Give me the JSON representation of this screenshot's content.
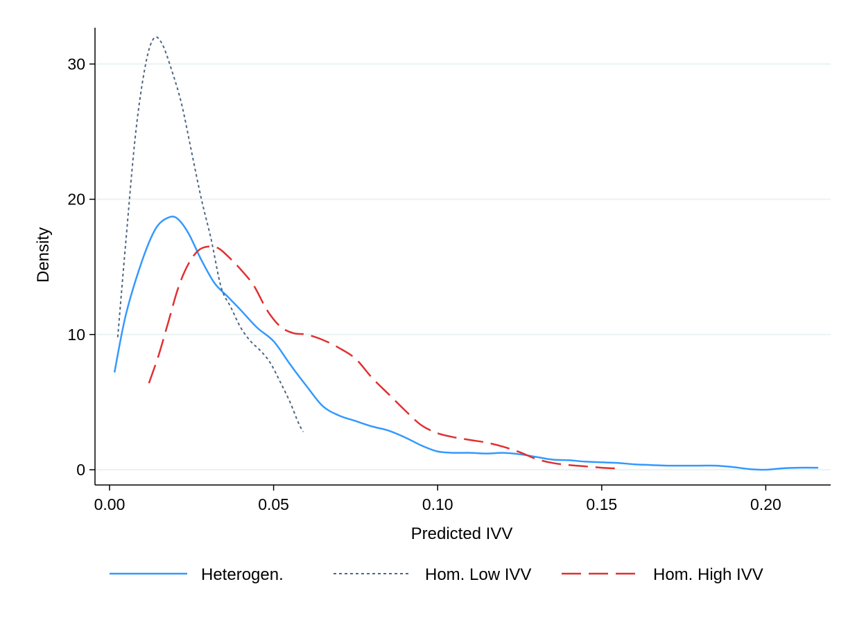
{
  "chart_data": {
    "type": "line",
    "title": "",
    "xlabel": "Predicted IVV",
    "ylabel": "Density",
    "xlim": [
      0.0,
      0.22
    ],
    "ylim": [
      0,
      32
    ],
    "x_ticks": [
      "0.00",
      "0.05",
      "0.10",
      "0.15",
      "0.20"
    ],
    "y_ticks": [
      "0",
      "10",
      "20",
      "30"
    ],
    "grid": "horizontal",
    "legend_position": "bottom",
    "series": [
      {
        "name": "Heterogen.",
        "color": "#3399ff",
        "dash": "solid",
        "points": [
          [
            0.0015,
            7.2
          ],
          [
            0.005,
            11.5
          ],
          [
            0.01,
            15.5
          ],
          [
            0.014,
            17.8
          ],
          [
            0.0175,
            18.6
          ],
          [
            0.0205,
            18.6
          ],
          [
            0.024,
            17.5
          ],
          [
            0.028,
            15.5
          ],
          [
            0.032,
            13.8
          ],
          [
            0.036,
            12.8
          ],
          [
            0.04,
            11.8
          ],
          [
            0.045,
            10.5
          ],
          [
            0.05,
            9.5
          ],
          [
            0.055,
            7.8
          ],
          [
            0.06,
            6.2
          ],
          [
            0.065,
            4.7
          ],
          [
            0.07,
            4.0
          ],
          [
            0.075,
            3.6
          ],
          [
            0.08,
            3.2
          ],
          [
            0.085,
            2.9
          ],
          [
            0.09,
            2.4
          ],
          [
            0.095,
            1.8
          ],
          [
            0.1,
            1.35
          ],
          [
            0.105,
            1.25
          ],
          [
            0.11,
            1.25
          ],
          [
            0.115,
            1.2
          ],
          [
            0.12,
            1.25
          ],
          [
            0.125,
            1.15
          ],
          [
            0.13,
            0.95
          ],
          [
            0.135,
            0.75
          ],
          [
            0.14,
            0.7
          ],
          [
            0.145,
            0.6
          ],
          [
            0.15,
            0.55
          ],
          [
            0.155,
            0.5
          ],
          [
            0.16,
            0.4
          ],
          [
            0.165,
            0.35
          ],
          [
            0.17,
            0.3
          ],
          [
            0.175,
            0.3
          ],
          [
            0.18,
            0.3
          ],
          [
            0.185,
            0.3
          ],
          [
            0.19,
            0.2
          ],
          [
            0.195,
            0.05
          ],
          [
            0.2,
            0.0
          ],
          [
            0.205,
            0.1
          ],
          [
            0.21,
            0.15
          ],
          [
            0.216,
            0.15
          ]
        ]
      },
      {
        "name": "Hom. Low IVV",
        "color": "#4d6680",
        "dash": "dotted",
        "points": [
          [
            0.0025,
            9.8
          ],
          [
            0.005,
            17
          ],
          [
            0.008,
            25
          ],
          [
            0.011,
            30
          ],
          [
            0.0135,
            31.9
          ],
          [
            0.016,
            31.5
          ],
          [
            0.019,
            29.5
          ],
          [
            0.022,
            27
          ],
          [
            0.025,
            23.5
          ],
          [
            0.028,
            20
          ],
          [
            0.031,
            17
          ],
          [
            0.034,
            13.5
          ],
          [
            0.037,
            12
          ],
          [
            0.04,
            10.5
          ],
          [
            0.043,
            9.5
          ],
          [
            0.046,
            8.8
          ],
          [
            0.049,
            7.9
          ],
          [
            0.052,
            6.5
          ],
          [
            0.055,
            5
          ],
          [
            0.0575,
            3.5
          ],
          [
            0.059,
            2.8
          ]
        ]
      },
      {
        "name": "Hom. High IVV",
        "color": "#e03030",
        "dash": "long-dash",
        "points": [
          [
            0.012,
            6.4
          ],
          [
            0.015,
            8.5
          ],
          [
            0.018,
            11
          ],
          [
            0.021,
            13.5
          ],
          [
            0.024,
            15.2
          ],
          [
            0.027,
            16.2
          ],
          [
            0.03,
            16.5
          ],
          [
            0.033,
            16.4
          ],
          [
            0.036,
            15.8
          ],
          [
            0.04,
            14.8
          ],
          [
            0.044,
            13.6
          ],
          [
            0.048,
            11.8
          ],
          [
            0.052,
            10.6
          ],
          [
            0.056,
            10.1
          ],
          [
            0.06,
            10.0
          ],
          [
            0.065,
            9.6
          ],
          [
            0.07,
            9.0
          ],
          [
            0.075,
            8.2
          ],
          [
            0.08,
            6.8
          ],
          [
            0.085,
            5.6
          ],
          [
            0.09,
            4.4
          ],
          [
            0.095,
            3.3
          ],
          [
            0.1,
            2.7
          ],
          [
            0.105,
            2.4
          ],
          [
            0.11,
            2.2
          ],
          [
            0.115,
            2.0
          ],
          [
            0.12,
            1.7
          ],
          [
            0.125,
            1.3
          ],
          [
            0.13,
            0.8
          ],
          [
            0.135,
            0.5
          ],
          [
            0.14,
            0.35
          ],
          [
            0.145,
            0.25
          ],
          [
            0.15,
            0.15
          ],
          [
            0.154,
            0.1
          ]
        ]
      }
    ]
  }
}
